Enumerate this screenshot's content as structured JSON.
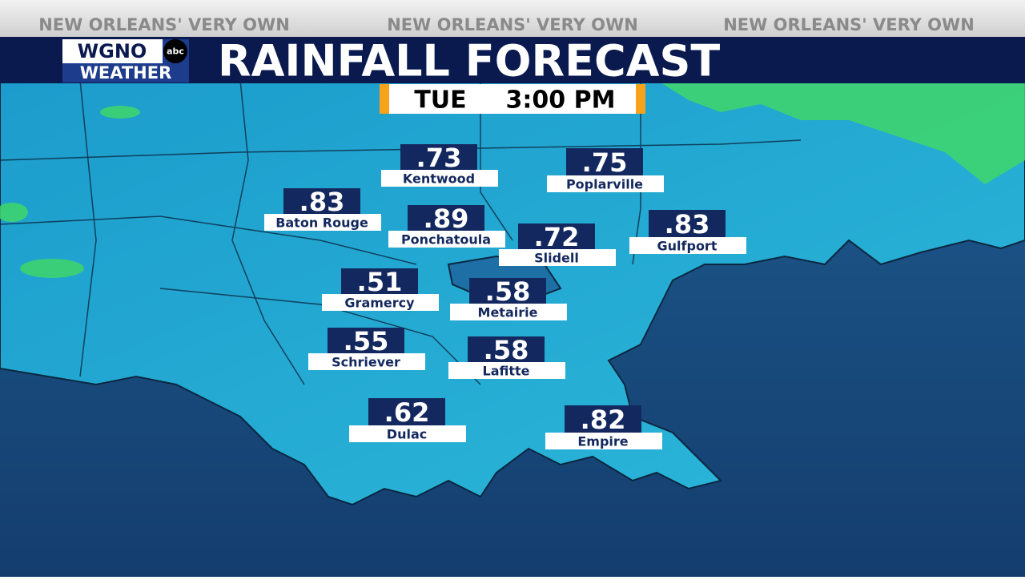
{
  "banner": {
    "tagline": [
      "NEW ORLEANS' VERY OWN",
      "NEW ORLEANS' VERY OWN",
      "NEW ORLEANS' VERY OWN"
    ]
  },
  "logo": {
    "station": "WGNO",
    "network": "abc",
    "label": "WEATHER"
  },
  "header": {
    "title": "RAINFALL FORECAST"
  },
  "time": {
    "day": "TUE",
    "clock": "3:00 PM"
  },
  "locations": [
    {
      "name": "Kentwood",
      "amount": ".73"
    },
    {
      "name": "Poplarville",
      "amount": ".75"
    },
    {
      "name": "Baton Rouge",
      "amount": ".83"
    },
    {
      "name": "Ponchatoula",
      "amount": ".89"
    },
    {
      "name": "Slidell",
      "amount": ".72"
    },
    {
      "name": "Gulfport",
      "amount": ".83"
    },
    {
      "name": "Gramercy",
      "amount": ".51"
    },
    {
      "name": "Metairie",
      "amount": ".58"
    },
    {
      "name": "Schriever",
      "amount": ".55"
    },
    {
      "name": "Lafitte",
      "amount": ".58"
    },
    {
      "name": "Dulac",
      "amount": ".62"
    },
    {
      "name": "Empire",
      "amount": ".82"
    }
  ]
}
